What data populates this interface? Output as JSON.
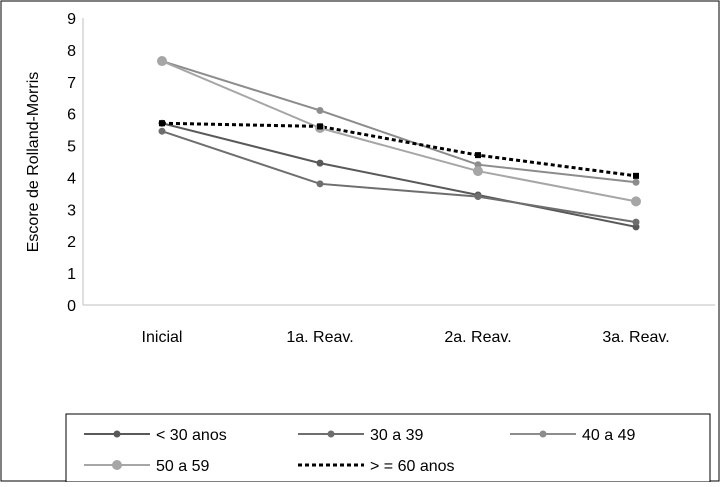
{
  "chart_data": {
    "type": "line",
    "title": "",
    "xlabel": "",
    "ylabel": "Escore de Rolland-Morris",
    "ylim": [
      0,
      9
    ],
    "yticks": [
      "0",
      "1",
      "2",
      "3",
      "4",
      "5",
      "6",
      "7",
      "8",
      "9"
    ],
    "categories": [
      "Inicial",
      "1a. Reav.",
      "2a. Reav.",
      "3a. Reav."
    ],
    "grid": false,
    "legend_position": "bottom",
    "series": [
      {
        "name": "< 30 anos",
        "values": [
          5.7,
          4.45,
          3.45,
          2.45
        ],
        "color": "#595959",
        "style": "solid",
        "marker": "circle-small"
      },
      {
        "name": "30 a 39",
        "values": [
          5.45,
          3.8,
          3.4,
          2.6
        ],
        "color": "#6e6e6e",
        "style": "solid",
        "marker": "circle-small"
      },
      {
        "name": "40 a 49",
        "values": [
          7.65,
          6.1,
          4.4,
          3.85
        ],
        "color": "#8c8c8c",
        "style": "solid",
        "marker": "circle-small"
      },
      {
        "name": "50 a 59",
        "values": [
          7.65,
          5.55,
          4.2,
          3.25
        ],
        "color": "#a6a6a6",
        "style": "solid",
        "marker": "circle-large"
      },
      {
        "name": "> = 60 anos",
        "values": [
          5.7,
          5.6,
          4.7,
          4.05
        ],
        "color": "#000000",
        "style": "dashed",
        "marker": "square"
      }
    ]
  }
}
